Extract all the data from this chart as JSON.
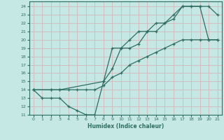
{
  "xlabel": "Humidex (Indice chaleur)",
  "bg_color": "#c5e8e5",
  "grid_color": "#d4b8b8",
  "line_color": "#2e6e62",
  "xlim": [
    -0.5,
    21.5
  ],
  "ylim": [
    11,
    24.6
  ],
  "xticks": [
    0,
    1,
    2,
    3,
    4,
    5,
    6,
    7,
    8,
    9,
    10,
    11,
    12,
    13,
    14,
    15,
    16,
    17,
    18,
    19,
    20,
    21
  ],
  "yticks": [
    11,
    12,
    13,
    14,
    15,
    16,
    17,
    18,
    19,
    20,
    21,
    22,
    23,
    24
  ],
  "line1_x": [
    0,
    1,
    2,
    3,
    4,
    5,
    6,
    7,
    8,
    9,
    10,
    11,
    12,
    13,
    14,
    15,
    16,
    17,
    18,
    19,
    20,
    21
  ],
  "line1_y": [
    14,
    13,
    13,
    13,
    12,
    11.5,
    11,
    11,
    15,
    16.5,
    19,
    19,
    19.5,
    21,
    21,
    22,
    22.5,
    24,
    24,
    24,
    20,
    20
  ],
  "line2_x": [
    0,
    2,
    3,
    4,
    5,
    6,
    7,
    8,
    9,
    10,
    11,
    12,
    13,
    14,
    15,
    16,
    17,
    18,
    19,
    20,
    21
  ],
  "line2_y": [
    14,
    14,
    14,
    14,
    14,
    14,
    14,
    14.5,
    15.5,
    16,
    17,
    17.5,
    18,
    18.5,
    19,
    19.5,
    20,
    20,
    20,
    20,
    20
  ],
  "line3_x": [
    0,
    2,
    3,
    8,
    9,
    10,
    11,
    12,
    13,
    14,
    15,
    16,
    17,
    18,
    19,
    20,
    21
  ],
  "line3_y": [
    14,
    14,
    14,
    15,
    19,
    19,
    20,
    21,
    21,
    22,
    22,
    23,
    24,
    24,
    24,
    24,
    23
  ]
}
